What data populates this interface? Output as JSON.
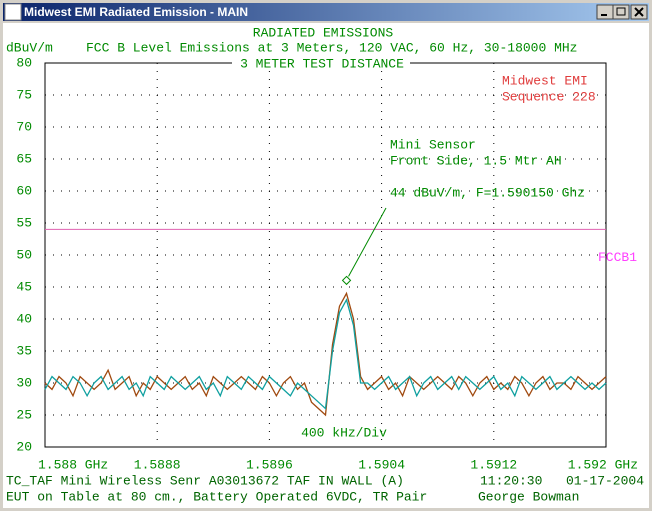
{
  "window": {
    "title": "Midwest EMI Radiated Emission - MAIN"
  },
  "chart_data": {
    "type": "line",
    "title": "RADIATED EMISSIONS",
    "subtitle": "FCC B Level Emissions at 3 Meters, 120 VAC, 60 Hz, 30-18000 MHz",
    "ylabel": "dBuV/m",
    "note": "3 METER TEST DISTANCE",
    "company": [
      "Midwest EMI",
      "Sequence 228"
    ],
    "company_color": "#e03c3c",
    "division_label": "400 kHz/Div",
    "x": [
      1.588,
      1.58805,
      1.5881,
      1.58815,
      1.5882,
      1.58825,
      1.5883,
      1.58835,
      1.5884,
      1.58845,
      1.5885,
      1.58855,
      1.5886,
      1.58865,
      1.5887,
      1.58875,
      1.5888,
      1.58885,
      1.5889,
      1.58895,
      1.589,
      1.58905,
      1.5891,
      1.58915,
      1.5892,
      1.58925,
      1.5893,
      1.58935,
      1.5894,
      1.58945,
      1.5895,
      1.58955,
      1.5896,
      1.58965,
      1.5897,
      1.58975,
      1.5898,
      1.58985,
      1.5899,
      1.58995,
      1.59,
      1.59005,
      1.5901,
      1.59015,
      1.5902,
      1.59025,
      1.5903,
      1.59035,
      1.5904,
      1.59045,
      1.5905,
      1.59055,
      1.5906,
      1.59065,
      1.5907,
      1.59075,
      1.5908,
      1.59085,
      1.5909,
      1.59095,
      1.591,
      1.59105,
      1.5911,
      1.59115,
      1.5912,
      1.59125,
      1.5913,
      1.59135,
      1.5914,
      1.59145,
      1.5915,
      1.59155,
      1.5916,
      1.59165,
      1.5917,
      1.59175,
      1.5918,
      1.59185,
      1.5919,
      1.59195,
      1.592
    ],
    "series": [
      {
        "color": "#a04a10",
        "values": [
          30,
          29,
          31,
          30,
          28,
          31,
          30,
          29,
          30,
          32,
          29,
          30,
          31,
          28,
          30,
          29,
          31,
          30,
          29,
          30,
          31,
          29,
          30,
          28,
          31,
          30,
          29,
          30,
          31,
          30,
          29,
          31,
          30,
          28,
          30,
          31,
          29,
          30,
          27,
          26,
          25,
          36,
          42,
          44,
          40,
          31,
          29,
          30,
          31,
          29,
          30,
          28,
          31,
          30,
          29,
          30,
          31,
          30,
          29,
          31,
          30,
          28,
          30,
          31,
          29,
          30,
          29,
          31,
          30,
          28,
          30,
          31,
          29,
          30,
          30,
          29,
          31,
          30,
          29,
          30,
          31
        ]
      },
      {
        "color": "#10a0a0",
        "values": [
          29,
          31,
          30,
          29,
          31,
          30,
          28,
          30,
          31,
          29,
          30,
          31,
          29,
          30,
          28,
          31,
          30,
          29,
          31,
          30,
          29,
          30,
          31,
          29,
          30,
          28,
          31,
          30,
          29,
          31,
          30,
          29,
          31,
          30,
          29,
          28,
          30,
          29,
          28,
          27,
          26,
          35,
          41,
          43,
          39,
          30,
          30,
          29,
          30,
          31,
          29,
          30,
          31,
          28,
          30,
          31,
          29,
          30,
          31,
          29,
          31,
          30,
          29,
          30,
          31,
          29,
          30,
          28,
          31,
          30,
          29,
          30,
          31,
          29,
          30,
          31,
          30,
          29,
          30,
          29,
          30
        ]
      }
    ],
    "limit": {
      "value": 54,
      "label": "FCCB1",
      "color": "#e060b0",
      "label_color": "#ff40ff"
    },
    "annotation": {
      "lines": [
        "Mini Sensor",
        "Front Side, 1.5 Mtr AH"
      ],
      "label": "44 dBuV/m, F=1.590150 Ghz",
      "x": 1.59015,
      "y": 44
    },
    "xlim": [
      1.588,
      1.592
    ],
    "xticks": [
      {
        "value": 1.588,
        "label": "1.588 GHz"
      },
      1.5888,
      1.5896,
      1.5904,
      1.5912,
      {
        "value": 1.592,
        "label": "1.592 GHz"
      }
    ],
    "ylim": [
      20,
      80
    ],
    "yticks": [
      20,
      25,
      30,
      35,
      40,
      45,
      50,
      55,
      60,
      65,
      70,
      75,
      80
    ],
    "grid": true,
    "text_color": "#008a00"
  },
  "footer": {
    "line1": "TC_TAF Mini Wireless Senr  A03013672 TAF IN WALL (A)",
    "time": "11:20:30",
    "date": "01-17-2004",
    "line2": "EUT on Table at 80 cm., Battery Operated 6VDC, TR Pair",
    "operator": "George Bowman"
  }
}
